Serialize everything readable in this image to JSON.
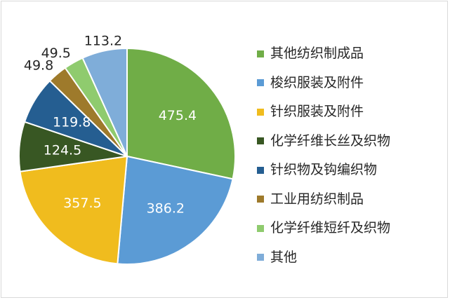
{
  "chart_data": {
    "type": "pie",
    "title": "",
    "legend_position": "right",
    "slices": [
      {
        "label": "其他纺织制成品",
        "value": 475.4,
        "color": "#70ad47",
        "value_label_color": "#ffffff",
        "value_label_placement": "inside"
      },
      {
        "label": "梭织服装及附件",
        "value": 386.2,
        "color": "#5b9bd5",
        "value_label_color": "#ffffff",
        "value_label_placement": "inside"
      },
      {
        "label": "针织服装及附件",
        "value": 357.5,
        "color": "#f0bc1e",
        "value_label_color": "#ffffff",
        "value_label_placement": "inside"
      },
      {
        "label": "化学纤维长丝及织物",
        "value": 124.5,
        "color": "#385723",
        "value_label_color": "#ffffff",
        "value_label_placement": "inside"
      },
      {
        "label": "针织物及钩编织物",
        "value": 119.8,
        "color": "#255e91",
        "value_label_color": "#ffffff",
        "value_label_placement": "inside"
      },
      {
        "label": "工业用纺织制品",
        "value": 49.8,
        "color": "#9e7a2b",
        "value_label_color": "#262626",
        "value_label_placement": "outside"
      },
      {
        "label": "化学纤维短纤及织物",
        "value": 49.5,
        "color": "#8fcb6e",
        "value_label_color": "#262626",
        "value_label_placement": "outside"
      },
      {
        "label": "其他",
        "value": 113.2,
        "color": "#7fadd9",
        "value_label_color": "#262626",
        "value_label_placement": "outside"
      }
    ]
  }
}
